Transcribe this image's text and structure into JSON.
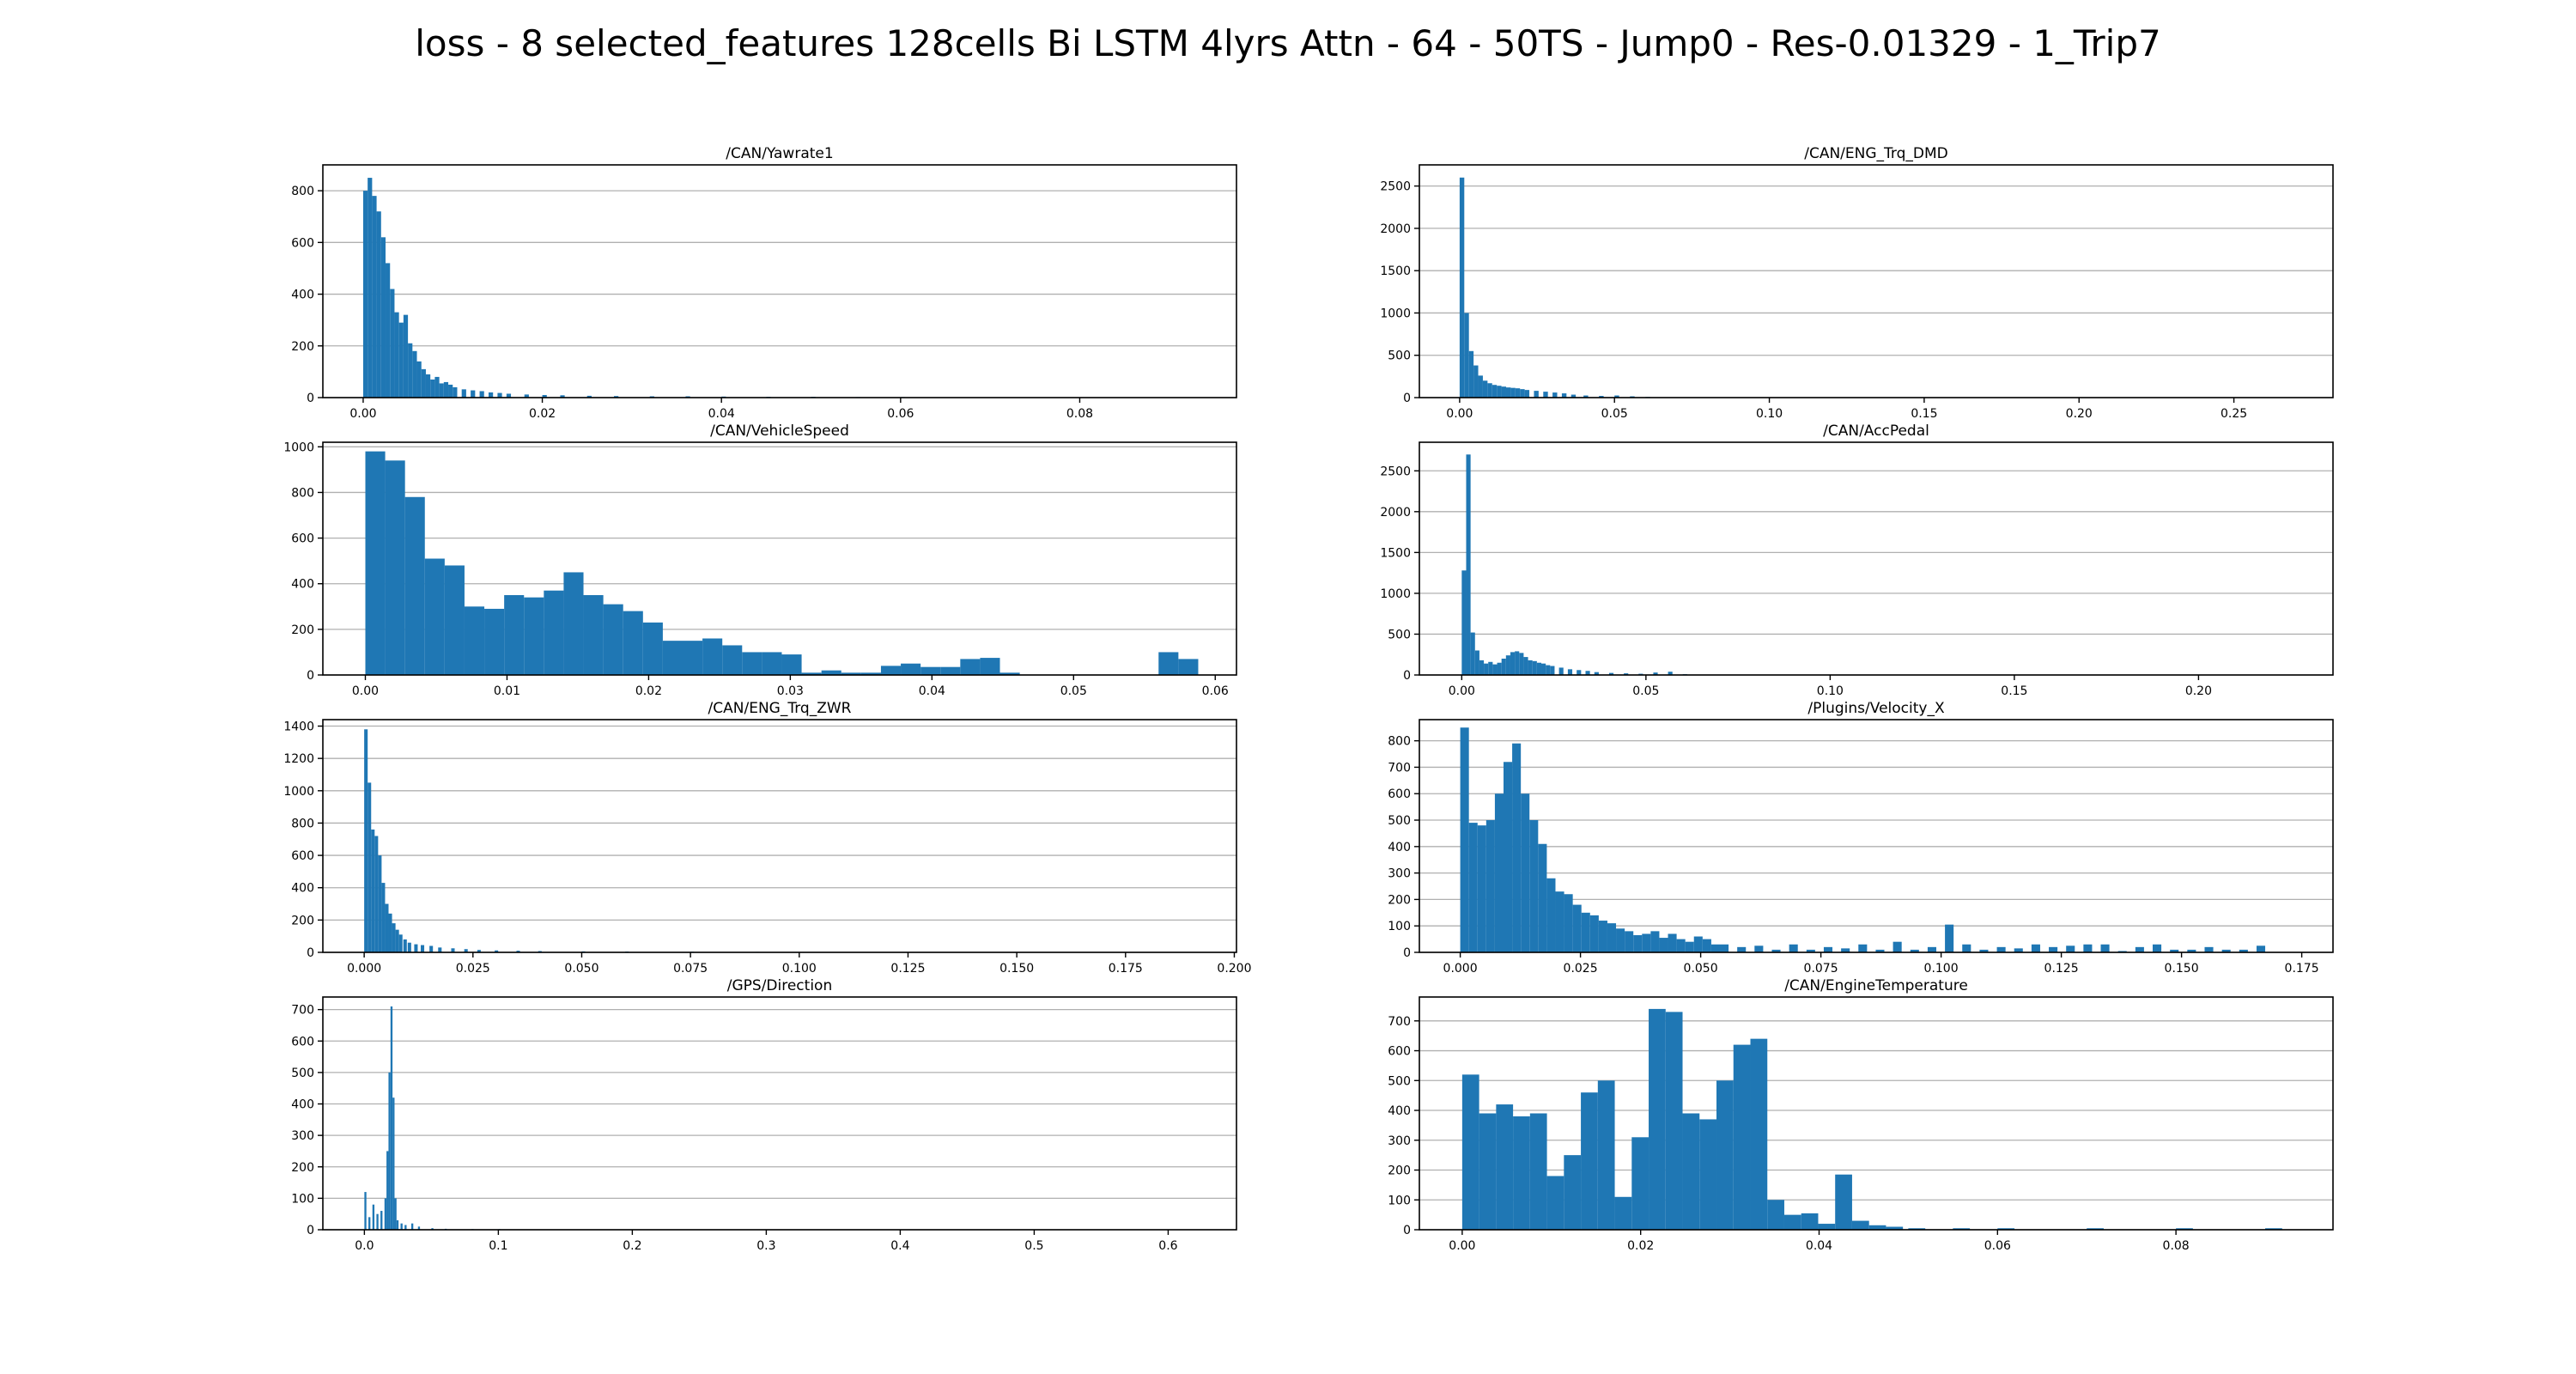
{
  "suptitle": "loss - 8 selected_features 128cells Bi LSTM 4lyrs Attn - 64 - 50TS - Jump0 - Res-0.01329 - 1_Trip7",
  "colors": {
    "bar": "#1f77b4",
    "grid": "#b0b0b0"
  },
  "chart_data": [
    {
      "type": "bar",
      "title": "/CAN/Yawrate1",
      "xlim": [
        -0.0045,
        0.0975
      ],
      "ylim": [
        0,
        900
      ],
      "xticks": [
        0.0,
        0.02,
        0.04,
        0.06,
        0.08
      ],
      "xtick_labels": [
        "0.00",
        "0.02",
        "0.04",
        "0.06",
        "0.08"
      ],
      "yticks": [
        0,
        200,
        400,
        600,
        800
      ],
      "ytick_labels": [
        "0",
        "200",
        "400",
        "600",
        "800"
      ],
      "bin_width": 0.0005,
      "x": [
        0.0,
        0.0005,
        0.001,
        0.0015,
        0.002,
        0.0025,
        0.003,
        0.0035,
        0.004,
        0.0045,
        0.005,
        0.0055,
        0.006,
        0.0065,
        0.007,
        0.0075,
        0.008,
        0.0085,
        0.009,
        0.0095,
        0.01,
        0.011,
        0.012,
        0.013,
        0.014,
        0.015,
        0.016,
        0.018,
        0.02,
        0.022,
        0.025,
        0.028,
        0.032,
        0.036,
        0.04,
        0.045,
        0.05,
        0.055,
        0.06,
        0.07,
        0.08,
        0.09
      ],
      "values": [
        800,
        850,
        780,
        720,
        620,
        520,
        420,
        330,
        290,
        320,
        210,
        180,
        140,
        110,
        90,
        70,
        80,
        55,
        60,
        50,
        40,
        32,
        28,
        25,
        20,
        18,
        15,
        12,
        10,
        9,
        7,
        6,
        5,
        5,
        4,
        3,
        3,
        2,
        2,
        1,
        1,
        1
      ]
    },
    {
      "type": "bar",
      "title": "/CAN/ENG_Trq_DMD",
      "xlim": [
        -0.013,
        0.282
      ],
      "ylim": [
        0,
        2750
      ],
      "xticks": [
        0.0,
        0.05,
        0.1,
        0.15,
        0.2,
        0.25
      ],
      "xtick_labels": [
        "0.00",
        "0.05",
        "0.10",
        "0.15",
        "0.20",
        "0.25"
      ],
      "yticks": [
        0,
        500,
        1000,
        1500,
        2000,
        2500
      ],
      "ytick_labels": [
        "0",
        "500",
        "1000",
        "1500",
        "2000",
        "2500"
      ],
      "bin_width": 0.0015,
      "x": [
        0.0,
        0.0015,
        0.003,
        0.0045,
        0.006,
        0.0075,
        0.009,
        0.0105,
        0.012,
        0.0135,
        0.015,
        0.0165,
        0.018,
        0.0195,
        0.021,
        0.024,
        0.027,
        0.03,
        0.033,
        0.036,
        0.04,
        0.045,
        0.05,
        0.055,
        0.06,
        0.07,
        0.08,
        0.1,
        0.12,
        0.15,
        0.2,
        0.26
      ],
      "values": [
        2600,
        1000,
        550,
        380,
        260,
        200,
        170,
        150,
        140,
        130,
        120,
        115,
        110,
        100,
        90,
        80,
        70,
        60,
        50,
        35,
        25,
        20,
        25,
        15,
        8,
        5,
        3,
        2,
        2,
        1,
        1,
        1
      ]
    },
    {
      "type": "bar",
      "title": "/CAN/VehicleSpeed",
      "xlim": [
        -0.003,
        0.0615
      ],
      "ylim": [
        0,
        1020
      ],
      "xticks": [
        0.0,
        0.01,
        0.02,
        0.03,
        0.04,
        0.05,
        0.06
      ],
      "xtick_labels": [
        "0.00",
        "0.01",
        "0.02",
        "0.03",
        "0.04",
        "0.05",
        "0.06"
      ],
      "yticks": [
        0,
        200,
        400,
        600,
        800,
        1000
      ],
      "ytick_labels": [
        "0",
        "200",
        "400",
        "600",
        "800",
        "1000"
      ],
      "bin_width": 0.0014,
      "x": [
        0.0,
        0.0014,
        0.0028,
        0.0042,
        0.0056,
        0.007,
        0.0084,
        0.0098,
        0.0112,
        0.0126,
        0.014,
        0.0154,
        0.0168,
        0.0182,
        0.0196,
        0.021,
        0.0224,
        0.0238,
        0.0252,
        0.0266,
        0.028,
        0.0294,
        0.0308,
        0.0322,
        0.0336,
        0.035,
        0.0364,
        0.0378,
        0.0392,
        0.0406,
        0.042,
        0.0434,
        0.0448,
        0.0462,
        0.0476,
        0.049,
        0.0504,
        0.0518,
        0.0532,
        0.0546,
        0.056,
        0.0574
      ],
      "values": [
        980,
        940,
        780,
        510,
        480,
        300,
        290,
        350,
        340,
        370,
        450,
        350,
        310,
        280,
        230,
        150,
        150,
        160,
        130,
        100,
        100,
        90,
        10,
        20,
        10,
        10,
        40,
        50,
        35,
        35,
        70,
        75,
        10,
        0,
        0,
        0,
        0,
        0,
        0,
        0,
        100,
        70
      ]
    },
    {
      "type": "bar",
      "title": "/CAN/AccPedal",
      "xlim": [
        -0.0115,
        0.2365
      ],
      "ylim": [
        0,
        2850
      ],
      "xticks": [
        0.0,
        0.05,
        0.1,
        0.15,
        0.2
      ],
      "xtick_labels": [
        "0.00",
        "0.05",
        "0.10",
        "0.15",
        "0.20"
      ],
      "yticks": [
        0,
        500,
        1000,
        1500,
        2000,
        2500
      ],
      "ytick_labels": [
        "0",
        "500",
        "1000",
        "1500",
        "2000",
        "2500"
      ],
      "bin_width": 0.0012,
      "x": [
        0.0,
        0.0012,
        0.0024,
        0.0036,
        0.0048,
        0.006,
        0.0072,
        0.0084,
        0.0096,
        0.0108,
        0.012,
        0.0132,
        0.0144,
        0.0156,
        0.0168,
        0.018,
        0.0192,
        0.0204,
        0.0216,
        0.0228,
        0.024,
        0.0264,
        0.0288,
        0.0312,
        0.0336,
        0.036,
        0.04,
        0.044,
        0.048,
        0.052,
        0.056,
        0.06
      ],
      "values": [
        1280,
        2700,
        520,
        300,
        180,
        140,
        160,
        130,
        150,
        200,
        240,
        280,
        290,
        270,
        220,
        180,
        170,
        150,
        140,
        120,
        110,
        90,
        70,
        60,
        50,
        35,
        25,
        20,
        15,
        30,
        40,
        10
      ]
    },
    {
      "type": "bar",
      "title": "/CAN/ENG_Trq_ZWR",
      "xlim": [
        -0.0095,
        0.2005
      ],
      "ylim": [
        0,
        1440
      ],
      "xticks": [
        0.0,
        0.025,
        0.05,
        0.075,
        0.1,
        0.125,
        0.15,
        0.175,
        0.2
      ],
      "xtick_labels": [
        "0.000",
        "0.025",
        "0.050",
        "0.075",
        "0.100",
        "0.125",
        "0.150",
        "0.175",
        "0.200"
      ],
      "yticks": [
        0,
        200,
        400,
        600,
        800,
        1000,
        1200,
        1400
      ],
      "ytick_labels": [
        "0",
        "200",
        "400",
        "600",
        "800",
        "1000",
        "1200",
        "1400"
      ],
      "bin_width": 0.0008,
      "x": [
        0.0,
        0.0008,
        0.0016,
        0.0024,
        0.0032,
        0.004,
        0.0048,
        0.0056,
        0.0064,
        0.0072,
        0.008,
        0.009,
        0.01,
        0.0115,
        0.013,
        0.015,
        0.017,
        0.02,
        0.023,
        0.026,
        0.03,
        0.035,
        0.04,
        0.05,
        0.06,
        0.075,
        0.09,
        0.11,
        0.13,
        0.15,
        0.17,
        0.19
      ],
      "values": [
        1380,
        1050,
        760,
        720,
        600,
        430,
        300,
        240,
        180,
        140,
        110,
        80,
        60,
        50,
        45,
        40,
        30,
        25,
        20,
        15,
        12,
        10,
        8,
        6,
        5,
        4,
        3,
        2,
        2,
        1,
        1,
        1
      ]
    },
    {
      "type": "bar",
      "title": "/Plugins/Velocity_X",
      "xlim": [
        -0.0085,
        0.1815
      ],
      "ylim": [
        0,
        880
      ],
      "xticks": [
        0.0,
        0.025,
        0.05,
        0.075,
        0.1,
        0.125,
        0.15,
        0.175
      ],
      "xtick_labels": [
        "0.000",
        "0.025",
        "0.050",
        "0.075",
        "0.100",
        "0.125",
        "0.150",
        "0.175"
      ],
      "yticks": [
        0,
        100,
        200,
        300,
        400,
        500,
        600,
        700,
        800
      ],
      "ytick_labels": [
        "0",
        "100",
        "200",
        "300",
        "400",
        "500",
        "600",
        "700",
        "800"
      ],
      "bin_width": 0.0018,
      "x": [
        0.0,
        0.0018,
        0.0036,
        0.0054,
        0.0072,
        0.009,
        0.0108,
        0.0126,
        0.0144,
        0.0162,
        0.018,
        0.0198,
        0.0216,
        0.0234,
        0.0252,
        0.027,
        0.0288,
        0.0306,
        0.0324,
        0.0342,
        0.036,
        0.0378,
        0.0396,
        0.0414,
        0.0432,
        0.045,
        0.0468,
        0.0486,
        0.0504,
        0.0522,
        0.054,
        0.0576,
        0.0612,
        0.0648,
        0.0684,
        0.072,
        0.0756,
        0.0792,
        0.0828,
        0.0864,
        0.09,
        0.0936,
        0.0972,
        0.1008,
        0.1044,
        0.108,
        0.1116,
        0.1152,
        0.1188,
        0.1224,
        0.126,
        0.1296,
        0.1332,
        0.1368,
        0.1404,
        0.144,
        0.1476,
        0.1512,
        0.1548,
        0.1584,
        0.162,
        0.1656
      ],
      "values": [
        850,
        490,
        480,
        500,
        600,
        720,
        790,
        600,
        500,
        410,
        280,
        230,
        220,
        180,
        150,
        140,
        120,
        110,
        90,
        80,
        65,
        70,
        80,
        55,
        70,
        50,
        40,
        60,
        50,
        30,
        30,
        20,
        25,
        10,
        30,
        10,
        20,
        15,
        30,
        10,
        40,
        10,
        20,
        105,
        30,
        10,
        20,
        15,
        30,
        20,
        25,
        30,
        30,
        5,
        20,
        30,
        10,
        10,
        20,
        10,
        10,
        25
      ]
    },
    {
      "type": "bar",
      "title": "/GPS/Direction",
      "xlim": [
        -0.031,
        0.651
      ],
      "ylim": [
        0,
        740
      ],
      "xticks": [
        0.0,
        0.1,
        0.2,
        0.3,
        0.4,
        0.5,
        0.6
      ],
      "xtick_labels": [
        "0.0",
        "0.1",
        "0.2",
        "0.3",
        "0.4",
        "0.5",
        "0.6"
      ],
      "yticks": [
        0,
        100,
        200,
        300,
        400,
        500,
        600,
        700
      ],
      "ytick_labels": [
        "0",
        "100",
        "200",
        "300",
        "400",
        "500",
        "600",
        "700"
      ],
      "bin_width": 0.0015,
      "x": [
        0.0,
        0.003,
        0.006,
        0.009,
        0.012,
        0.015,
        0.0165,
        0.018,
        0.0195,
        0.021,
        0.0225,
        0.024,
        0.027,
        0.03,
        0.035,
        0.04,
        0.05,
        0.06,
        0.08,
        0.1,
        0.15,
        0.2,
        0.3,
        0.4,
        0.5,
        0.6
      ],
      "values": [
        120,
        40,
        80,
        50,
        60,
        100,
        250,
        500,
        710,
        420,
        100,
        30,
        20,
        15,
        20,
        10,
        5,
        3,
        2,
        2,
        1,
        1,
        1,
        1,
        1,
        1
      ]
    },
    {
      "type": "bar",
      "title": "/CAN/EngineTemperature",
      "xlim": [
        -0.0048,
        0.0976
      ],
      "ylim": [
        0,
        780
      ],
      "xticks": [
        0.0,
        0.02,
        0.04,
        0.06,
        0.08
      ],
      "xtick_labels": [
        "0.00",
        "0.02",
        "0.04",
        "0.06",
        "0.08"
      ],
      "yticks": [
        0,
        100,
        200,
        300,
        400,
        500,
        600,
        700
      ],
      "ytick_labels": [
        "0",
        "100",
        "200",
        "300",
        "400",
        "500",
        "600",
        "700"
      ],
      "bin_width": 0.0019,
      "x": [
        0.0,
        0.0019,
        0.0038,
        0.0057,
        0.0076,
        0.0095,
        0.0114,
        0.0133,
        0.0152,
        0.0171,
        0.019,
        0.0209,
        0.0228,
        0.0247,
        0.0266,
        0.0285,
        0.0304,
        0.0323,
        0.0342,
        0.0361,
        0.038,
        0.0399,
        0.0418,
        0.0437,
        0.0456,
        0.0475,
        0.05,
        0.055,
        0.06,
        0.07,
        0.08,
        0.09
      ],
      "values": [
        520,
        390,
        420,
        380,
        390,
        180,
        250,
        460,
        500,
        110,
        310,
        740,
        730,
        390,
        370,
        500,
        620,
        640,
        100,
        50,
        55,
        20,
        185,
        30,
        15,
        10,
        5,
        5,
        5,
        5,
        5,
        5
      ]
    }
  ]
}
